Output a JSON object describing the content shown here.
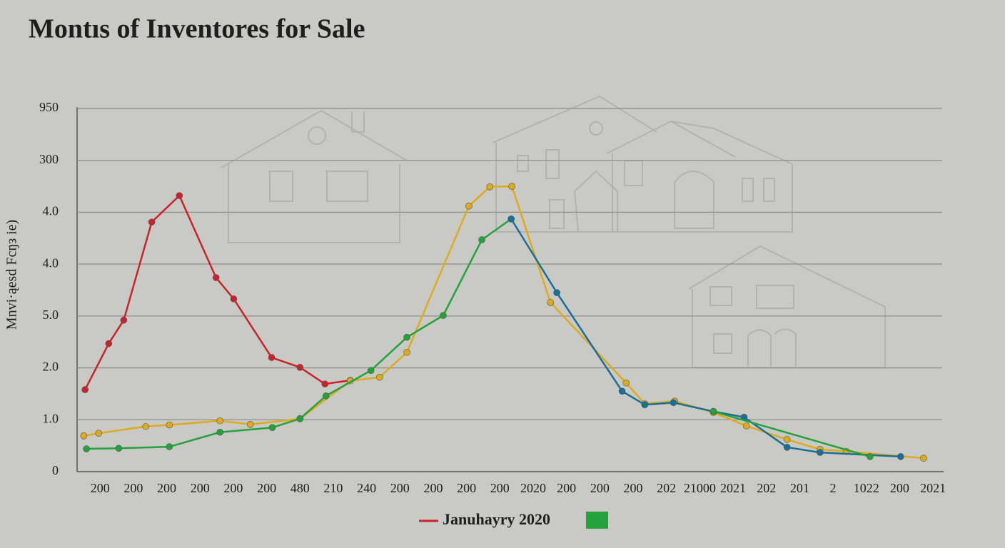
{
  "chart_data": {
    "type": "line",
    "title": "Montıs of Inventores for Sale",
    "y_label": "Mnvi·ąesd Fcŋз ie)",
    "categories": [
      "200",
      "200",
      "200",
      "200",
      "200",
      "200",
      "480",
      "210",
      "240",
      "200",
      "200",
      "200",
      "200",
      "2020",
      "200",
      "200",
      "200",
      "202",
      "21000",
      "2021",
      "202",
      "201",
      "2",
      "1022",
      "200",
      "2021"
    ],
    "xlim": [
      -0.69,
      25.32
    ],
    "ylim": [
      0,
      7
    ],
    "yticks": [
      0,
      {
        "value": 1,
        "label": "1.0"
      },
      {
        "value": 2,
        "label": "2.0"
      },
      {
        "value": 3,
        "label": "5.0"
      },
      {
        "value": 4,
        "label": "4.0"
      },
      {
        "value": 5,
        "label": "4.0"
      },
      {
        "value": 6,
        "label": "300"
      },
      {
        "value": 7,
        "label": "950"
      }
    ],
    "grid": true,
    "series": [
      {
        "name": "Januhayry 2020",
        "color": "#c8242a",
        "x": [
          -0.45,
          0.26,
          0.71,
          1.55,
          2.38,
          3.48,
          4.01,
          5.15,
          6.0,
          6.75,
          7.51
        ],
        "values": [
          1.58,
          2.47,
          2.92,
          4.81,
          5.32,
          3.74,
          3.33,
          2.2,
          2.01,
          1.69,
          1.76
        ]
      },
      {
        "color": "#ddab1e",
        "x": [
          -0.49,
          -0.04,
          1.37,
          2.08,
          3.6,
          4.51,
          6.0,
          7.51,
          8.39,
          9.21,
          11.07,
          11.7,
          12.36,
          13.52,
          15.79,
          16.35,
          17.25,
          18.41,
          19.4,
          20.62,
          21.61,
          22.4,
          24.72
        ],
        "values": [
          0.69,
          0.74,
          0.87,
          0.9,
          0.98,
          0.91,
          1.02,
          1.75,
          1.82,
          2.3,
          5.12,
          5.49,
          5.5,
          3.26,
          1.71,
          1.31,
          1.36,
          1.14,
          0.88,
          0.62,
          0.43,
          0.39,
          0.26
        ]
      },
      {
        "color": "#25a23c",
        "x": [
          -0.41,
          0.56,
          2.08,
          3.6,
          5.17,
          6.0,
          6.78,
          8.13,
          9.21,
          10.3,
          11.46,
          12.34
        ],
        "values": [
          0.44,
          0.45,
          0.48,
          0.76,
          0.85,
          1.02,
          1.46,
          1.95,
          2.59,
          3.01,
          4.47,
          4.87
        ]
      },
      {
        "color": "#1a6f96",
        "x": [
          12.34,
          13.71,
          15.67,
          16.35,
          17.21,
          18.41,
          19.33,
          20.62,
          21.61,
          24.03
        ],
        "values": [
          4.87,
          3.45,
          1.55,
          1.29,
          1.33,
          1.16,
          1.05,
          0.47,
          0.37,
          0.29
        ]
      },
      {
        "color": "#25a23c",
        "x": [
          18.41,
          23.11
        ],
        "values": [
          1.16,
          0.29
        ]
      }
    ]
  }
}
